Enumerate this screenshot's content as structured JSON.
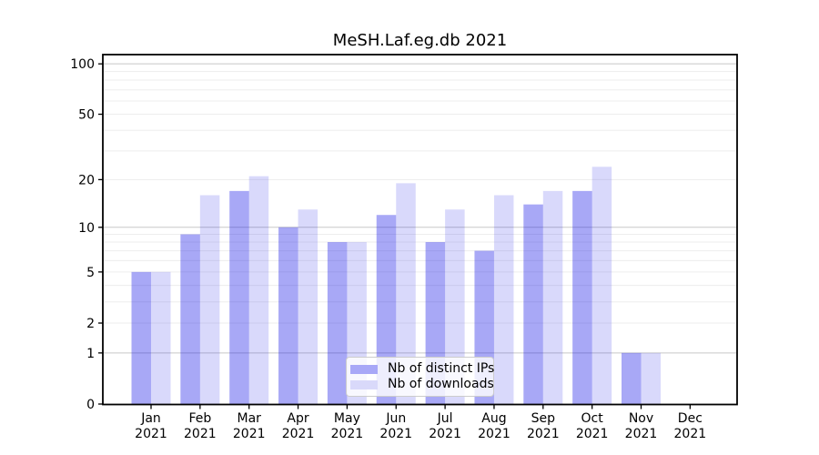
{
  "figure": {
    "title": "MeSH.Laf.eg.db 2021"
  },
  "legend": {
    "items": [
      "Nb of distinct IPs",
      "Nb of downloads"
    ]
  },
  "chart_data": {
    "type": "bar",
    "title": "MeSH.Laf.eg.db 2021",
    "categories": [
      "Jan",
      "Feb",
      "Mar",
      "Apr",
      "May",
      "Jun",
      "Jul",
      "Aug",
      "Sep",
      "Oct",
      "Nov",
      "Dec"
    ],
    "category_year": "2021",
    "series": [
      {
        "name": "Nb of distinct IPs",
        "color": "rgba(20,20,230,0.37)",
        "legend_color": "#a8a8f7",
        "values": [
          5,
          9,
          17,
          10,
          8,
          12,
          8,
          7,
          14,
          17,
          1,
          0
        ]
      },
      {
        "name": "Nb of downloads",
        "color": "rgba(20,20,230,0.16)",
        "legend_color": "#d9d9fa",
        "values": [
          5,
          16,
          21,
          13,
          8,
          19,
          13,
          16,
          17,
          24,
          1,
          0
        ]
      }
    ],
    "xlabel": "",
    "ylabel": "",
    "yscale": "log1p",
    "ylim": [
      0,
      113
    ],
    "y_ticks": [
      0,
      1,
      2,
      5,
      10,
      20,
      50,
      100
    ],
    "y_major_gridlines": [
      1,
      10,
      100
    ],
    "y_minor_gridlines": [
      2,
      3,
      4,
      5,
      6,
      7,
      8,
      9,
      20,
      30,
      40,
      50,
      60,
      70,
      80,
      90
    ],
    "grid": true,
    "legend_position": "lower center",
    "colors": {
      "grid_major": "#c8c8c8",
      "grid_minor": "#ededed",
      "axis": "#000000",
      "text": "#000000",
      "background": "#ffffff",
      "legend_border": "#cccccc",
      "legend_bg": "rgba(255,255,255,0.8)"
    }
  }
}
